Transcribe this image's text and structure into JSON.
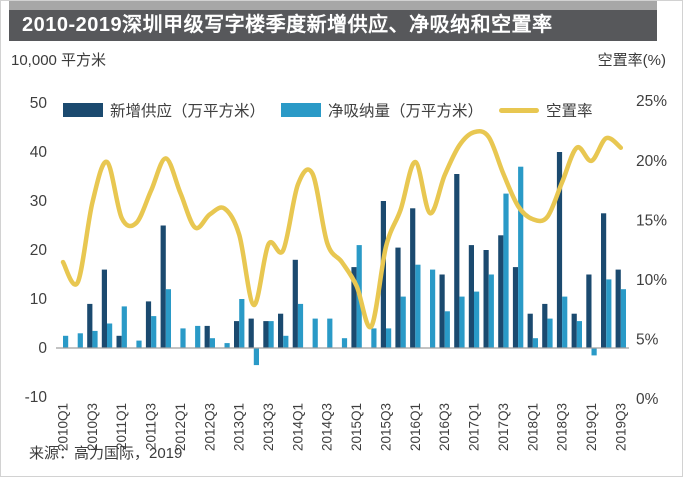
{
  "title": "2010-2019深圳甲级写字楼季度新增供应、净吸纳和空置率",
  "left_axis_title": "10,000 平方米",
  "right_axis_title": "空置率(%)",
  "source": "来源：高力国际，2019",
  "colors": {
    "supply": "#1b4a6f",
    "absorption": "#2a9ac7",
    "vacancy": "#e8c751",
    "banner_bg": "#57585b",
    "banner_strip": "#a7a7a7",
    "axis_text": "#3f3f3f",
    "zero_line": "#9f9f9f"
  },
  "legend": {
    "supply_label": "新增供应（万平方米）",
    "absorption_label": "净吸纳量（万平方米）",
    "vacancy_label": "空置率"
  },
  "chart_data": {
    "type": "bar+line",
    "title": "2010-2019深圳甲级写字楼季度新增供应、净吸纳和空置率",
    "categories": [
      "2010Q1",
      "2010Q2",
      "2010Q3",
      "2010Q4",
      "2011Q1",
      "2011Q2",
      "2011Q3",
      "2011Q4",
      "2012Q1",
      "2012Q2",
      "2012Q3",
      "2012Q4",
      "2013Q1",
      "2013Q2",
      "2013Q3",
      "2013Q4",
      "2014Q1",
      "2014Q2",
      "2014Q3",
      "2014Q4",
      "2015Q1",
      "2015Q2",
      "2015Q3",
      "2015Q4",
      "2016Q1",
      "2016Q2",
      "2016Q3",
      "2016Q4",
      "2017Q1",
      "2017Q2",
      "2017Q3",
      "2017Q4",
      "2018Q1",
      "2018Q2",
      "2018Q3",
      "2018Q4",
      "2019Q1",
      "2019Q2",
      "2019Q3"
    ],
    "x_tick_labels": [
      "2010Q1",
      "2010Q3",
      "2011Q1",
      "2011Q3",
      "2012Q1",
      "2012Q3",
      "2013Q1",
      "2013Q3",
      "2014Q1",
      "2014Q3",
      "2015Q1",
      "2015Q3",
      "2016Q1",
      "2016Q3",
      "2017Q1",
      "2017Q3",
      "2018Q1",
      "2018Q3",
      "2019Q1",
      "2019Q3"
    ],
    "series": [
      {
        "name": "新增供应（万平方米）",
        "type": "bar",
        "axis": "left",
        "values": [
          0,
          0,
          9,
          16,
          2.5,
          0,
          9.5,
          25,
          0,
          0,
          4.5,
          0,
          5.5,
          6,
          5.5,
          7,
          18,
          0,
          0,
          0,
          16.5,
          0,
          30,
          20.5,
          28.5,
          0,
          15,
          35.5,
          21,
          20,
          23,
          16.5,
          7,
          9,
          40,
          7,
          15,
          27.5,
          16
        ]
      },
      {
        "name": "净吸纳量（万平方米）",
        "type": "bar",
        "axis": "left",
        "values": [
          2.5,
          3,
          3.5,
          5,
          8.5,
          1.5,
          6.5,
          12,
          4,
          4.5,
          2,
          1,
          10,
          -3.5,
          5.5,
          2.5,
          9,
          6,
          6,
          2,
          21,
          4,
          4,
          10.5,
          17,
          16,
          7.5,
          10.5,
          11.5,
          15,
          31.5,
          37,
          2,
          6,
          10.5,
          5.5,
          -1.5,
          14,
          12
        ]
      },
      {
        "name": "空置率",
        "type": "line",
        "axis": "right",
        "unit": "%",
        "values": [
          11.5,
          9.8,
          16.5,
          19.9,
          15.2,
          14.8,
          17.5,
          20.2,
          17.3,
          14.4,
          15.5,
          16.0,
          13.8,
          7.9,
          13.0,
          12.5,
          18.0,
          18.9,
          13.1,
          11.5,
          9.5,
          6.1,
          12.8,
          15.9,
          19.9,
          15.6,
          18.8,
          21.3,
          22.4,
          22.0,
          18.9,
          16.2,
          15.1,
          15.3,
          18.2,
          21.1,
          20.0,
          21.9,
          21.1
        ]
      }
    ],
    "left_axis": {
      "title": "10,000 平方米",
      "unit": "万平方米",
      "ticks": [
        50,
        40,
        30,
        20,
        10,
        0,
        -10
      ],
      "tick_labels": [
        "50",
        "40",
        "30",
        "20",
        "10",
        "0",
        "-10"
      ],
      "range": [
        -10,
        50
      ]
    },
    "right_axis": {
      "title": "空置率(%)",
      "ticks": [
        25,
        20,
        15,
        10,
        5,
        0
      ],
      "tick_labels": [
        "25%",
        "20%",
        "15%",
        "10%",
        "5%",
        "0%"
      ],
      "range": [
        0,
        25
      ]
    },
    "grid": false,
    "legend_position": "top"
  }
}
